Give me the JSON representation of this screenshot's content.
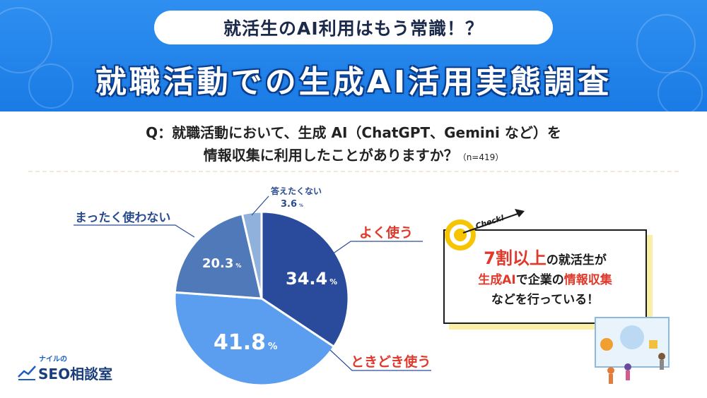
{
  "header": {
    "subtitle": "就活生のAI利用はもう常識！？",
    "title": "就職活動での生成AI活用実態調査"
  },
  "question": {
    "line1": "Q：就職活動において、生成 AI（ChatGPT、Gemini など）を",
    "line2": "情報収集に利用したことがありますか？",
    "n": "（n=419）"
  },
  "chart_data": {
    "type": "pie",
    "categories": [
      "よく使う",
      "ときどき使う",
      "まったく使わない",
      "答えたくない"
    ],
    "values": [
      34.4,
      41.8,
      20.3,
      3.6
    ],
    "unit": "%",
    "colors": [
      "#2a4b9b",
      "#5b9ef0",
      "#4f79b8",
      "#8fb1dc"
    ],
    "value_labels": [
      "34.4",
      "41.8",
      "20.3",
      "3.6"
    ]
  },
  "note": {
    "check": "Check!",
    "l1_red": "7割以上",
    "l1_rest": "の就活生が",
    "l2_red1": "生成AI",
    "l2_mid": "で企業の",
    "l2_red2": "情報収集",
    "l3": "などを行っている！"
  },
  "logo": {
    "small": "ナイルの",
    "main": "SEO相談室"
  },
  "icons": [
    "target-icon",
    "arrow-icon",
    "illustration-icon",
    "chart-logo-icon"
  ]
}
